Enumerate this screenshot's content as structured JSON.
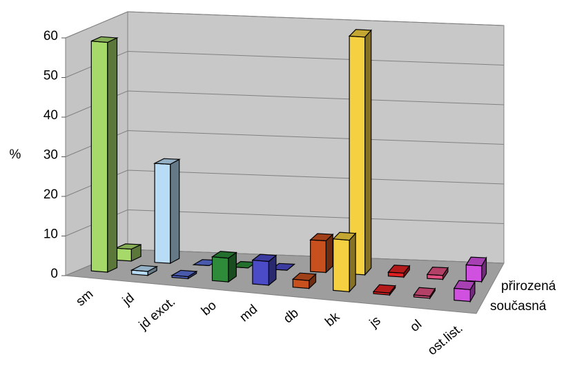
{
  "chart_data": {
    "type": "bar3d",
    "categories": [
      "sm",
      "jd",
      "jd exot.",
      "bo",
      "md",
      "db",
      "bk",
      "js",
      "ol",
      "ost.list."
    ],
    "colors": [
      "#a6d86a",
      "#b8dcf5",
      "#5b6fd6",
      "#2e8b3a",
      "#4b4bc8",
      "#c8501e",
      "#f5d040",
      "#e02020",
      "#e05080",
      "#d050e0"
    ],
    "series": [
      {
        "name": "současná",
        "values": [
          58,
          1,
          0.5,
          6,
          6,
          2,
          13,
          0.5,
          0.5,
          3
        ]
      },
      {
        "name": "přirozená",
        "values": [
          3,
          25,
          0,
          0,
          0,
          8,
          60,
          1,
          1,
          4
        ]
      }
    ],
    "ylabel": "%",
    "ylim": [
      0,
      60
    ],
    "yticks": [
      0,
      10,
      20,
      30,
      40,
      50,
      60
    ],
    "grid": true
  }
}
